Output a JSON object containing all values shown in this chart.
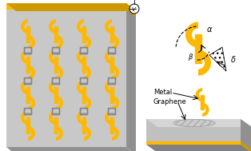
{
  "gold": "#FFB800",
  "gold_dark": "#CC9900",
  "gold_edge": "#B8860B",
  "white": "#FFFFFF",
  "black": "#000000",
  "panel_face": "#C8C8C8",
  "panel_top": "#D8D8D8",
  "panel_right": "#909090",
  "panel_bottom_front": "#B0B0B0",
  "slab_face": "#C0C0C0",
  "slab_top": "#D5D5D5",
  "slab_right": "#909090",
  "slab_bottom": "#808080",
  "graphene_color": "#CCCCCC",
  "label_metal": "Metal",
  "label_graphene": "Graphene",
  "label_alpha": "α",
  "label_beta": "β",
  "label_delta": "δ"
}
